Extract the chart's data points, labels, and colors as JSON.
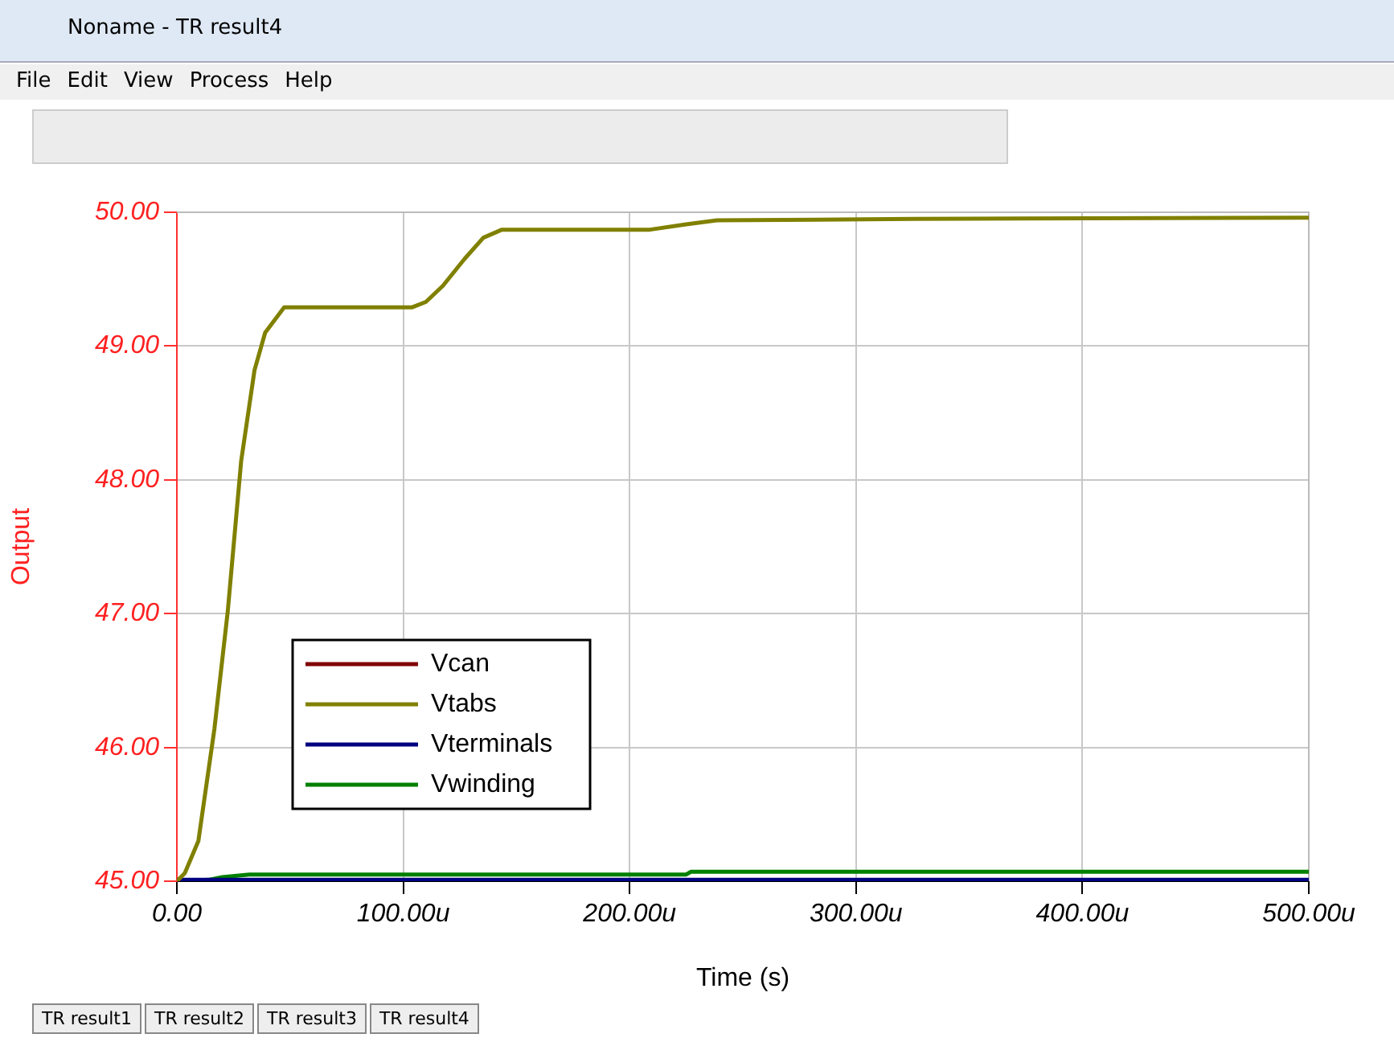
{
  "chart_data": {
    "type": "line",
    "title": "Noname - TR result4",
    "xlabel": "Time (s)",
    "ylabel": "Output",
    "annotations": [
      "File",
      "Edit",
      "View",
      "Process",
      "Help",
      "TR result1",
      "TR result2",
      "TR result3",
      "TR result4"
    ],
    "xlim": [
      0,
      500
    ],
    "ylim": [
      45,
      50
    ],
    "xticks": [
      {
        "value": 0,
        "label": "0.00"
      },
      {
        "value": 100,
        "label": "100.00u"
      },
      {
        "value": 200,
        "label": "200.00u"
      },
      {
        "value": 300,
        "label": "300.00u"
      },
      {
        "value": 400,
        "label": "400.00u"
      },
      {
        "value": 500,
        "label": "500.00u"
      }
    ],
    "yticks": [
      {
        "value": 45,
        "label": "45.00"
      },
      {
        "value": 46,
        "label": "46.00"
      },
      {
        "value": 47,
        "label": "47.00"
      },
      {
        "value": 48,
        "label": "48.00"
      },
      {
        "value": 49,
        "label": "49.00"
      },
      {
        "value": 50,
        "label": "50.00"
      }
    ],
    "grid": true,
    "legend": "bottom left",
    "marker": "none",
    "line_style": "solid",
    "series": [
      {
        "name": "Vcan",
        "color": "#800000"
      },
      {
        "name": "Vtabs",
        "color": "#808000",
        "x": [
          0,
          3.5,
          9.5,
          16.6,
          22.5,
          28.4,
          34.3,
          39,
          47.4,
          104,
          110,
          117.5,
          127,
          135.4,
          143.6,
          209,
          225,
          238.6,
          325.5,
          500
        ],
        "values": [
          45,
          45.06,
          45.3,
          46.14,
          47.02,
          48.14,
          48.82,
          49.1,
          49.29,
          49.29,
          49.33,
          49.45,
          49.65,
          49.81,
          49.87,
          49.87,
          49.91,
          49.94,
          49.95,
          49.96
        ]
      },
      {
        "name": "Vterminals",
        "color": "#000080",
        "x": [
          0,
          500
        ],
        "values": [
          45.01,
          45.01
        ]
      },
      {
        "name": "Vwinding",
        "color": "#008000",
        "x": [
          0,
          14,
          20,
          32,
          225,
          227,
          500
        ],
        "values": [
          45,
          45.01,
          45.03,
          45.05,
          45.05,
          45.07,
          45.07
        ]
      }
    ]
  }
}
